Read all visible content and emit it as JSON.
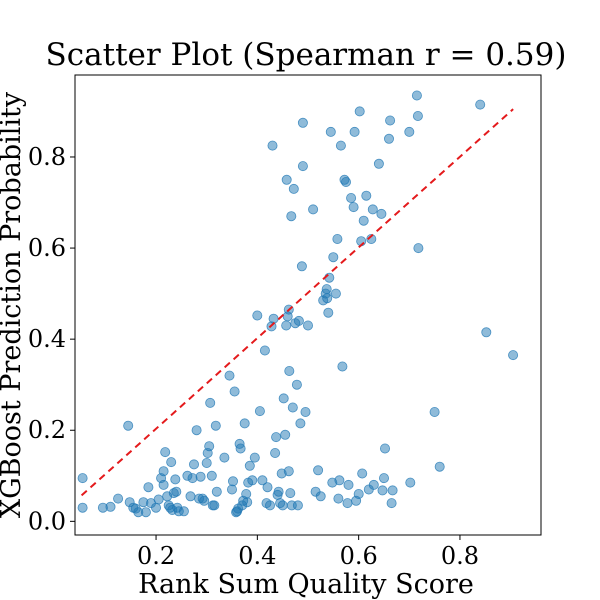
{
  "chart_data": {
    "type": "scatter",
    "title": "Scatter Plot (Spearman r = 0.59)",
    "xlabel": "Rank Sum Quality Score",
    "ylabel": "XGBoost Prediction Probability",
    "xlim": [
      0.04,
      0.96
    ],
    "ylim": [
      -0.03,
      0.98
    ],
    "xticks": [
      0.2,
      0.4,
      0.6,
      0.8
    ],
    "xtick_labels": [
      "0.2",
      "0.4",
      "0.6",
      "0.8"
    ],
    "yticks": [
      0.0,
      0.2,
      0.4,
      0.6,
      0.8
    ],
    "ytick_labels": [
      "0.0",
      "0.2",
      "0.4",
      "0.6",
      "0.8"
    ],
    "grid": false,
    "point_color": "#1f77b4",
    "point_opacity": 0.5,
    "trendline": {
      "x": [
        0.053,
        0.905
      ],
      "y": [
        0.057,
        0.905
      ],
      "color": "#e41a1c",
      "style": "dashed"
    },
    "points": [
      {
        "x": 0.055,
        "y": 0.095
      },
      {
        "x": 0.055,
        "y": 0.03
      },
      {
        "x": 0.095,
        "y": 0.03
      },
      {
        "x": 0.11,
        "y": 0.032
      },
      {
        "x": 0.125,
        "y": 0.05
      },
      {
        "x": 0.145,
        "y": 0.21
      },
      {
        "x": 0.148,
        "y": 0.042
      },
      {
        "x": 0.155,
        "y": 0.03
      },
      {
        "x": 0.16,
        "y": 0.028
      },
      {
        "x": 0.165,
        "y": 0.02
      },
      {
        "x": 0.175,
        "y": 0.042
      },
      {
        "x": 0.18,
        "y": 0.02
      },
      {
        "x": 0.185,
        "y": 0.075
      },
      {
        "x": 0.19,
        "y": 0.04
      },
      {
        "x": 0.2,
        "y": 0.03
      },
      {
        "x": 0.205,
        "y": 0.048
      },
      {
        "x": 0.21,
        "y": 0.095
      },
      {
        "x": 0.215,
        "y": 0.11
      },
      {
        "x": 0.215,
        "y": 0.08
      },
      {
        "x": 0.218,
        "y": 0.152
      },
      {
        "x": 0.222,
        "y": 0.055
      },
      {
        "x": 0.225,
        "y": 0.035
      },
      {
        "x": 0.228,
        "y": 0.03
      },
      {
        "x": 0.23,
        "y": 0.13
      },
      {
        "x": 0.232,
        "y": 0.025
      },
      {
        "x": 0.235,
        "y": 0.062
      },
      {
        "x": 0.238,
        "y": 0.092
      },
      {
        "x": 0.24,
        "y": 0.065
      },
      {
        "x": 0.242,
        "y": 0.03
      },
      {
        "x": 0.245,
        "y": 0.022
      },
      {
        "x": 0.255,
        "y": 0.022
      },
      {
        "x": 0.262,
        "y": 0.1
      },
      {
        "x": 0.268,
        "y": 0.055
      },
      {
        "x": 0.272,
        "y": 0.095
      },
      {
        "x": 0.275,
        "y": 0.125
      },
      {
        "x": 0.28,
        "y": 0.2
      },
      {
        "x": 0.285,
        "y": 0.05
      },
      {
        "x": 0.288,
        "y": 0.098
      },
      {
        "x": 0.292,
        "y": 0.05
      },
      {
        "x": 0.295,
        "y": 0.045
      },
      {
        "x": 0.3,
        "y": 0.128
      },
      {
        "x": 0.302,
        "y": 0.15
      },
      {
        "x": 0.305,
        "y": 0.165
      },
      {
        "x": 0.307,
        "y": 0.26
      },
      {
        "x": 0.31,
        "y": 0.1
      },
      {
        "x": 0.312,
        "y": 0.035
      },
      {
        "x": 0.315,
        "y": 0.035
      },
      {
        "x": 0.318,
        "y": 0.21
      },
      {
        "x": 0.32,
        "y": 0.065
      },
      {
        "x": 0.335,
        "y": 0.14
      },
      {
        "x": 0.345,
        "y": 0.32
      },
      {
        "x": 0.35,
        "y": 0.07
      },
      {
        "x": 0.352,
        "y": 0.088
      },
      {
        "x": 0.355,
        "y": 0.285
      },
      {
        "x": 0.358,
        "y": 0.02
      },
      {
        "x": 0.36,
        "y": 0.022
      },
      {
        "x": 0.362,
        "y": 0.028
      },
      {
        "x": 0.365,
        "y": 0.17
      },
      {
        "x": 0.367,
        "y": 0.16
      },
      {
        "x": 0.37,
        "y": 0.035
      },
      {
        "x": 0.372,
        "y": 0.045
      },
      {
        "x": 0.375,
        "y": 0.215
      },
      {
        "x": 0.378,
        "y": 0.06
      },
      {
        "x": 0.38,
        "y": 0.042
      },
      {
        "x": 0.382,
        "y": 0.085
      },
      {
        "x": 0.385,
        "y": 0.122
      },
      {
        "x": 0.39,
        "y": 0.09
      },
      {
        "x": 0.395,
        "y": 0.14
      },
      {
        "x": 0.4,
        "y": 0.452
      },
      {
        "x": 0.405,
        "y": 0.242
      },
      {
        "x": 0.41,
        "y": 0.09
      },
      {
        "x": 0.415,
        "y": 0.375
      },
      {
        "x": 0.418,
        "y": 0.04
      },
      {
        "x": 0.42,
        "y": 0.075
      },
      {
        "x": 0.425,
        "y": 0.035
      },
      {
        "x": 0.428,
        "y": 0.428
      },
      {
        "x": 0.43,
        "y": 0.825
      },
      {
        "x": 0.432,
        "y": 0.445
      },
      {
        "x": 0.435,
        "y": 0.15
      },
      {
        "x": 0.437,
        "y": 0.185
      },
      {
        "x": 0.44,
        "y": 0.058
      },
      {
        "x": 0.442,
        "y": 0.065
      },
      {
        "x": 0.445,
        "y": 0.04
      },
      {
        "x": 0.448,
        "y": 0.105
      },
      {
        "x": 0.45,
        "y": 0.035
      },
      {
        "x": 0.452,
        "y": 0.27
      },
      {
        "x": 0.455,
        "y": 0.19
      },
      {
        "x": 0.457,
        "y": 0.43
      },
      {
        "x": 0.458,
        "y": 0.75
      },
      {
        "x": 0.46,
        "y": 0.45
      },
      {
        "x": 0.462,
        "y": 0.465
      },
      {
        "x": 0.462,
        "y": 0.11
      },
      {
        "x": 0.463,
        "y": 0.33
      },
      {
        "x": 0.465,
        "y": 0.062
      },
      {
        "x": 0.467,
        "y": 0.67
      },
      {
        "x": 0.468,
        "y": 0.035
      },
      {
        "x": 0.47,
        "y": 0.25
      },
      {
        "x": 0.472,
        "y": 0.73
      },
      {
        "x": 0.475,
        "y": 0.435
      },
      {
        "x": 0.478,
        "y": 0.3
      },
      {
        "x": 0.48,
        "y": 0.035
      },
      {
        "x": 0.482,
        "y": 0.44
      },
      {
        "x": 0.485,
        "y": 0.215
      },
      {
        "x": 0.488,
        "y": 0.56
      },
      {
        "x": 0.49,
        "y": 0.78
      },
      {
        "x": 0.49,
        "y": 0.875
      },
      {
        "x": 0.495,
        "y": 0.24
      },
      {
        "x": 0.5,
        "y": 0.43
      },
      {
        "x": 0.51,
        "y": 0.685
      },
      {
        "x": 0.515,
        "y": 0.065
      },
      {
        "x": 0.52,
        "y": 0.112
      },
      {
        "x": 0.525,
        "y": 0.055
      },
      {
        "x": 0.53,
        "y": 0.485
      },
      {
        "x": 0.535,
        "y": 0.5
      },
      {
        "x": 0.537,
        "y": 0.51
      },
      {
        "x": 0.538,
        "y": 0.49
      },
      {
        "x": 0.54,
        "y": 0.458
      },
      {
        "x": 0.542,
        "y": 0.535
      },
      {
        "x": 0.545,
        "y": 0.855
      },
      {
        "x": 0.548,
        "y": 0.085
      },
      {
        "x": 0.55,
        "y": 0.58
      },
      {
        "x": 0.555,
        "y": 0.5
      },
      {
        "x": 0.558,
        "y": 0.62
      },
      {
        "x": 0.56,
        "y": 0.05
      },
      {
        "x": 0.562,
        "y": 0.09
      },
      {
        "x": 0.565,
        "y": 0.825
      },
      {
        "x": 0.568,
        "y": 0.34
      },
      {
        "x": 0.572,
        "y": 0.75
      },
      {
        "x": 0.575,
        "y": 0.745
      },
      {
        "x": 0.578,
        "y": 0.04
      },
      {
        "x": 0.58,
        "y": 0.08
      },
      {
        "x": 0.585,
        "y": 0.71
      },
      {
        "x": 0.59,
        "y": 0.69
      },
      {
        "x": 0.592,
        "y": 0.855
      },
      {
        "x": 0.595,
        "y": 0.045
      },
      {
        "x": 0.6,
        "y": 0.06
      },
      {
        "x": 0.602,
        "y": 0.9
      },
      {
        "x": 0.605,
        "y": 0.615
      },
      {
        "x": 0.607,
        "y": 0.105
      },
      {
        "x": 0.61,
        "y": 0.66
      },
      {
        "x": 0.615,
        "y": 0.715
      },
      {
        "x": 0.62,
        "y": 0.07
      },
      {
        "x": 0.625,
        "y": 0.62
      },
      {
        "x": 0.628,
        "y": 0.685
      },
      {
        "x": 0.63,
        "y": 0.08
      },
      {
        "x": 0.64,
        "y": 0.785
      },
      {
        "x": 0.645,
        "y": 0.675
      },
      {
        "x": 0.647,
        "y": 0.068
      },
      {
        "x": 0.65,
        "y": 0.095
      },
      {
        "x": 0.652,
        "y": 0.16
      },
      {
        "x": 0.66,
        "y": 0.84
      },
      {
        "x": 0.662,
        "y": 0.88
      },
      {
        "x": 0.665,
        "y": 0.04
      },
      {
        "x": 0.667,
        "y": 0.068
      },
      {
        "x": 0.7,
        "y": 0.855
      },
      {
        "x": 0.702,
        "y": 0.085
      },
      {
        "x": 0.715,
        "y": 0.935
      },
      {
        "x": 0.717,
        "y": 0.89
      },
      {
        "x": 0.718,
        "y": 0.6
      },
      {
        "x": 0.75,
        "y": 0.24
      },
      {
        "x": 0.76,
        "y": 0.12
      },
      {
        "x": 0.84,
        "y": 0.915
      },
      {
        "x": 0.852,
        "y": 0.415
      },
      {
        "x": 0.905,
        "y": 0.365
      }
    ]
  }
}
